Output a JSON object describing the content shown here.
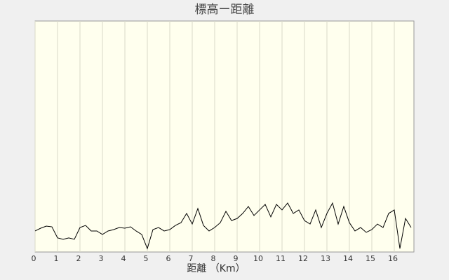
{
  "chart_data": {
    "type": "line",
    "title": "標高ー距離",
    "x_label": "距離 （Km）",
    "x": [
      0,
      0.25,
      0.5,
      0.75,
      1,
      1.25,
      1.5,
      1.75,
      2,
      2.25,
      2.5,
      2.75,
      3,
      3.25,
      3.5,
      3.75,
      4,
      4.25,
      4.5,
      4.75,
      5,
      5.25,
      5.5,
      5.75,
      6,
      6.25,
      6.5,
      6.75,
      7,
      7.25,
      7.5,
      7.75,
      8,
      8.25,
      8.5,
      8.75,
      9,
      9.25,
      9.5,
      9.75,
      10,
      10.25,
      10.5,
      10.75,
      11,
      11.25,
      11.5,
      11.75,
      12,
      12.25,
      12.5,
      12.75,
      13,
      13.25,
      13.5,
      13.75,
      14,
      14.25,
      14.5,
      14.75,
      15,
      15.25,
      15.5,
      15.75,
      16,
      16.25,
      16.5,
      16.75
    ],
    "series": [
      {
        "color": "#000000",
        "values": [
          9.1,
          10.3,
          11.2,
          10.9,
          6.1,
          5.5,
          6.1,
          5.5,
          10.6,
          11.5,
          9.1,
          9.1,
          7.6,
          9.1,
          9.7,
          10.6,
          10.3,
          10.9,
          9.1,
          7.6,
          1.5,
          9.7,
          10.6,
          9.1,
          9.7,
          11.5,
          12.7,
          16.7,
          12.1,
          18.8,
          11.5,
          9.1,
          10.6,
          12.7,
          17.6,
          13.6,
          14.5,
          16.7,
          19.7,
          15.8,
          18.2,
          20.6,
          15.2,
          20.6,
          18.2,
          21.2,
          16.7,
          18.2,
          13.6,
          12.1,
          18.2,
          10.6,
          16.7,
          21.2,
          12.1,
          19.7,
          12.7,
          9.1,
          10.6,
          8.5,
          9.7,
          12.1,
          10.6,
          16.7,
          18.2,
          1.5,
          14.5,
          10.6
        ]
      }
    ],
    "xlim": [
      0,
      16.875
    ],
    "ylim": [
      0,
      100
    ],
    "xticks": [
      0,
      1,
      2,
      3,
      4,
      5,
      6,
      7,
      8,
      9,
      10,
      11,
      12,
      13,
      14,
      15,
      16
    ],
    "grid": true
  }
}
